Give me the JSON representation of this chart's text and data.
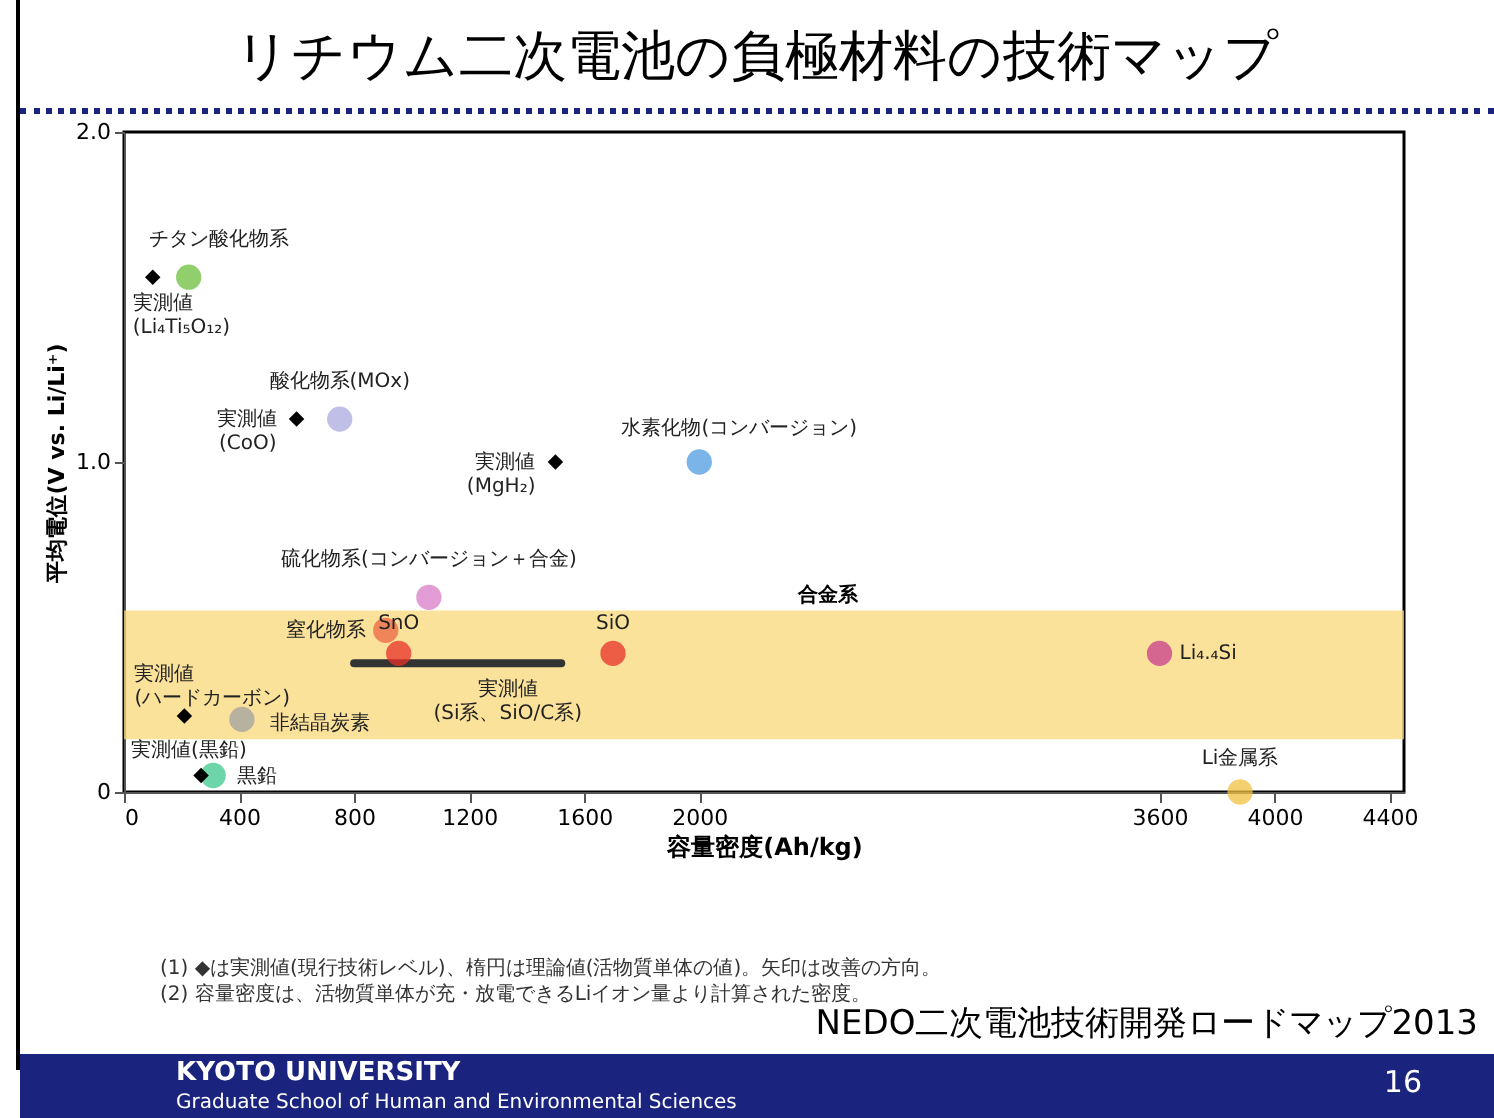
{
  "chart_data": {
    "type": "scatter",
    "title": "リチウム二次電池の負極材料の技術マップ",
    "xlabel": "容量密度(Ah/kg)",
    "ylabel": "平均電位(V vs. Li/Li⁺)",
    "xlim": [
      0,
      4450
    ],
    "xticks": [
      0,
      400,
      800,
      1200,
      1600,
      2000,
      3600,
      4000,
      4400
    ],
    "ylim": [
      0,
      2.0
    ],
    "yticks": [
      0,
      {
        "value": 1,
        "label": "1.0"
      },
      {
        "value": 2,
        "label": "2.0"
      }
    ],
    "grid": false,
    "bands": [
      {
        "axis": "y",
        "from": 0.16,
        "to": 0.55,
        "label": "合金系",
        "color": "#f9d878"
      }
    ],
    "series": [
      {
        "type": "line",
        "color": "#333333",
        "x": [
          800,
          1520
        ],
        "values": [
          0.39,
          0.39
        ]
      },
      {
        "marker": "circle",
        "x": [
          225,
          750,
          2000,
          410,
          310,
          1060,
          910,
          955,
          1700,
          3600,
          3880
        ],
        "values": [
          1.56,
          1.13,
          1.0,
          0.22,
          0.05,
          0.59,
          0.49,
          0.42,
          0.42,
          0.42,
          0.0
        ],
        "colors": [
          "#6cbf3c",
          "#a9a9e0",
          "#4f9be0",
          "#a0a0a0",
          "#3cc88c",
          "#d87cc8",
          "#ee6644",
          "#e8302a",
          "#e8302a",
          "#c83c8c",
          "#f0c040"
        ]
      },
      {
        "marker": "diamond",
        "color": "#000000",
        "x": [
          100,
          600,
          1500,
          210,
          268
        ],
        "values": [
          1.56,
          1.13,
          1.0,
          0.23,
          0.05
        ]
      }
    ],
    "annotations": [
      {
        "text": "チタン酸化物系",
        "x": 225,
        "y": 1.56
      },
      {
        "text": "実測値\n(Li₄Ti₅O₁₂)",
        "x": 100,
        "y": 1.56
      },
      {
        "text": "酸化物系(MOx)",
        "x": 750,
        "y": 1.13
      },
      {
        "text": "実測値\n(CoO)",
        "x": 600,
        "y": 1.13
      },
      {
        "text": "水素化物(コンバージョン)",
        "x": 2000,
        "y": 1.0
      },
      {
        "text": "実測値\n(MgH₂)",
        "x": 1500,
        "y": 1.0
      },
      {
        "text": "硫化物系(コンバージョン＋合金)",
        "x": 1060,
        "y": 0.59
      },
      {
        "text": "窒化物系",
        "x": 910,
        "y": 0.49
      },
      {
        "text": "SnO",
        "x": 955,
        "y": 0.42
      },
      {
        "text": "実測値\n(Si系、SiO/C系)",
        "x": 1160,
        "y": 0.39
      },
      {
        "text": "SiO",
        "x": 1700,
        "y": 0.42
      },
      {
        "text": "Li₄.₄Si",
        "x": 3600,
        "y": 0.42
      },
      {
        "text": "Li金属系",
        "x": 3880,
        "y": 0.0
      },
      {
        "text": "実測値\n(ハードカーボン)",
        "x": 210,
        "y": 0.23
      },
      {
        "text": "非結晶炭素",
        "x": 410,
        "y": 0.22
      },
      {
        "text": "実測値(黒鉛)",
        "x": 268,
        "y": 0.05
      },
      {
        "text": "黒鉛",
        "x": 310,
        "y": 0.05
      },
      "(1) ◆は実測値(現行技術レベル)、楕円は理論値(活物質単体の値)。矢印は改善の方向。",
      "(2) 容量密度は、活物質単体が充・放電できるLiイオン量より計算された密度。",
      "NEDO二次電池技術開発ロードマップ2013",
      "KYOTO UNIVERSITY",
      "Graduate School of Human and Environmental Sciences",
      "16"
    ]
  }
}
